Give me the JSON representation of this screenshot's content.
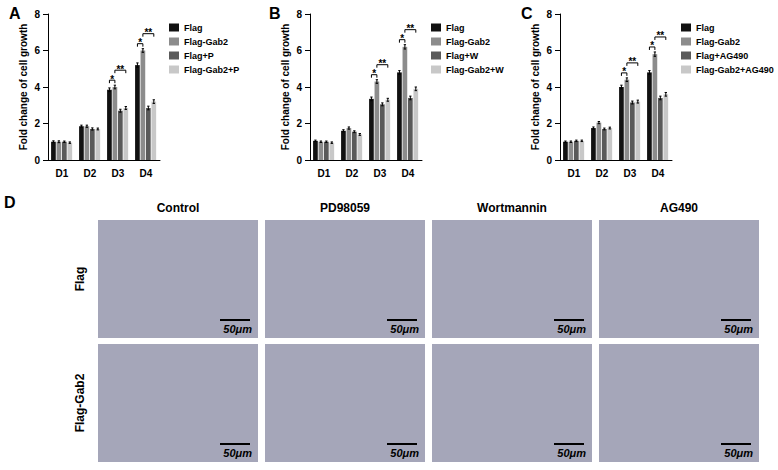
{
  "chart_data": [
    {
      "type": "bar",
      "title": "A",
      "y_label": "Fold change of cell growth",
      "categories": [
        "D1",
        "D2",
        "D3",
        "D4"
      ],
      "series": [
        {
          "name": "Flag",
          "color": "#111111",
          "values": [
            1.0,
            1.85,
            3.85,
            5.2
          ],
          "errors": [
            0.05,
            0.06,
            0.1,
            0.12
          ]
        },
        {
          "name": "Flag-Gab2",
          "color": "#8c8c8c",
          "values": [
            1.0,
            1.85,
            4.0,
            6.0
          ],
          "errors": [
            0.05,
            0.06,
            0.1,
            0.1
          ]
        },
        {
          "name": "Flag+P",
          "color": "#5a5a5a",
          "values": [
            1.0,
            1.7,
            2.7,
            2.85
          ],
          "errors": [
            0.04,
            0.06,
            0.08,
            0.1
          ]
        },
        {
          "name": "Flag-Gab2+P",
          "color": "#c8c8c8",
          "values": [
            0.95,
            1.7,
            2.85,
            3.2
          ],
          "errors": [
            0.04,
            0.05,
            0.08,
            0.1
          ]
        }
      ],
      "ylim": [
        0,
        8
      ],
      "yticks": [
        0,
        2,
        4,
        6,
        8
      ],
      "legend": "right",
      "annotations": [
        {
          "text": "*",
          "category": "D3",
          "from": "Flag",
          "to": "Flag-Gab2"
        },
        {
          "text": "**",
          "category": "D3",
          "from": "Flag-Gab2",
          "to": "Flag-Gab2+P"
        },
        {
          "text": "*",
          "category": "D4",
          "from": "Flag",
          "to": "Flag-Gab2"
        },
        {
          "text": "**",
          "category": "D4",
          "from": "Flag-Gab2",
          "to": "Flag-Gab2+P"
        }
      ]
    },
    {
      "type": "bar",
      "title": "B",
      "y_label": "Fold change of cell growth",
      "categories": [
        "D1",
        "D2",
        "D3",
        "D4"
      ],
      "series": [
        {
          "name": "Flag",
          "color": "#111111",
          "values": [
            1.05,
            1.6,
            3.35,
            4.8
          ],
          "errors": [
            0.04,
            0.06,
            0.1,
            0.1
          ]
        },
        {
          "name": "Flag-Gab2",
          "color": "#8c8c8c",
          "values": [
            1.0,
            1.75,
            4.3,
            6.2
          ],
          "errors": [
            0.04,
            0.06,
            0.1,
            0.12
          ]
        },
        {
          "name": "Flag+W",
          "color": "#5a5a5a",
          "values": [
            1.0,
            1.55,
            3.05,
            3.4
          ],
          "errors": [
            0.04,
            0.05,
            0.08,
            0.1
          ]
        },
        {
          "name": "Flag-Gab2+W",
          "color": "#c8c8c8",
          "values": [
            0.95,
            1.4,
            3.3,
            3.9
          ],
          "errors": [
            0.04,
            0.05,
            0.08,
            0.1
          ]
        }
      ],
      "ylim": [
        0,
        8
      ],
      "yticks": [
        0,
        2,
        4,
        6,
        8
      ],
      "legend": "right",
      "annotations": [
        {
          "text": "*",
          "category": "D3",
          "from": "Flag",
          "to": "Flag-Gab2"
        },
        {
          "text": "**",
          "category": "D3",
          "from": "Flag-Gab2",
          "to": "Flag-Gab2+W"
        },
        {
          "text": "*",
          "category": "D4",
          "from": "Flag",
          "to": "Flag-Gab2"
        },
        {
          "text": "**",
          "category": "D4",
          "from": "Flag-Gab2",
          "to": "Flag-Gab2+W"
        }
      ]
    },
    {
      "type": "bar",
      "title": "C",
      "y_label": "Fold change of cell growth",
      "categories": [
        "D1",
        "D2",
        "D3",
        "D4"
      ],
      "series": [
        {
          "name": "Flag",
          "color": "#111111",
          "values": [
            1.0,
            1.75,
            4.0,
            4.8
          ],
          "errors": [
            0.04,
            0.06,
            0.1,
            0.1
          ]
        },
        {
          "name": "Flag-Gab2",
          "color": "#8c8c8c",
          "values": [
            1.0,
            2.05,
            4.4,
            5.8
          ],
          "errors": [
            0.04,
            0.06,
            0.1,
            0.12
          ]
        },
        {
          "name": "Flag+AG490",
          "color": "#5a5a5a",
          "values": [
            1.05,
            1.7,
            3.15,
            3.4
          ],
          "errors": [
            0.04,
            0.05,
            0.08,
            0.1
          ]
        },
        {
          "name": "Flag-Gab2+AG490",
          "color": "#c8c8c8",
          "values": [
            1.05,
            1.75,
            3.2,
            3.6
          ],
          "errors": [
            0.04,
            0.05,
            0.08,
            0.1
          ]
        }
      ],
      "ylim": [
        0,
        8
      ],
      "yticks": [
        0,
        2,
        4,
        6,
        8
      ],
      "legend": "right",
      "annotations": [
        {
          "text": "*",
          "category": "D3",
          "from": "Flag",
          "to": "Flag-Gab2"
        },
        {
          "text": "**",
          "category": "D3",
          "from": "Flag-Gab2",
          "to": "Flag-Gab2+AG490"
        },
        {
          "text": "*",
          "category": "D4",
          "from": "Flag",
          "to": "Flag-Gab2"
        },
        {
          "text": "**",
          "category": "D4",
          "from": "Flag-Gab2",
          "to": "Flag-Gab2+AG490"
        }
      ]
    }
  ],
  "image_panel": {
    "title": "D",
    "columns": [
      "Control",
      "PD98059",
      "Wortmannin",
      "AG490"
    ],
    "rows": [
      "Flag",
      "Flag-Gab2"
    ],
    "scale_bar": "50μm"
  }
}
